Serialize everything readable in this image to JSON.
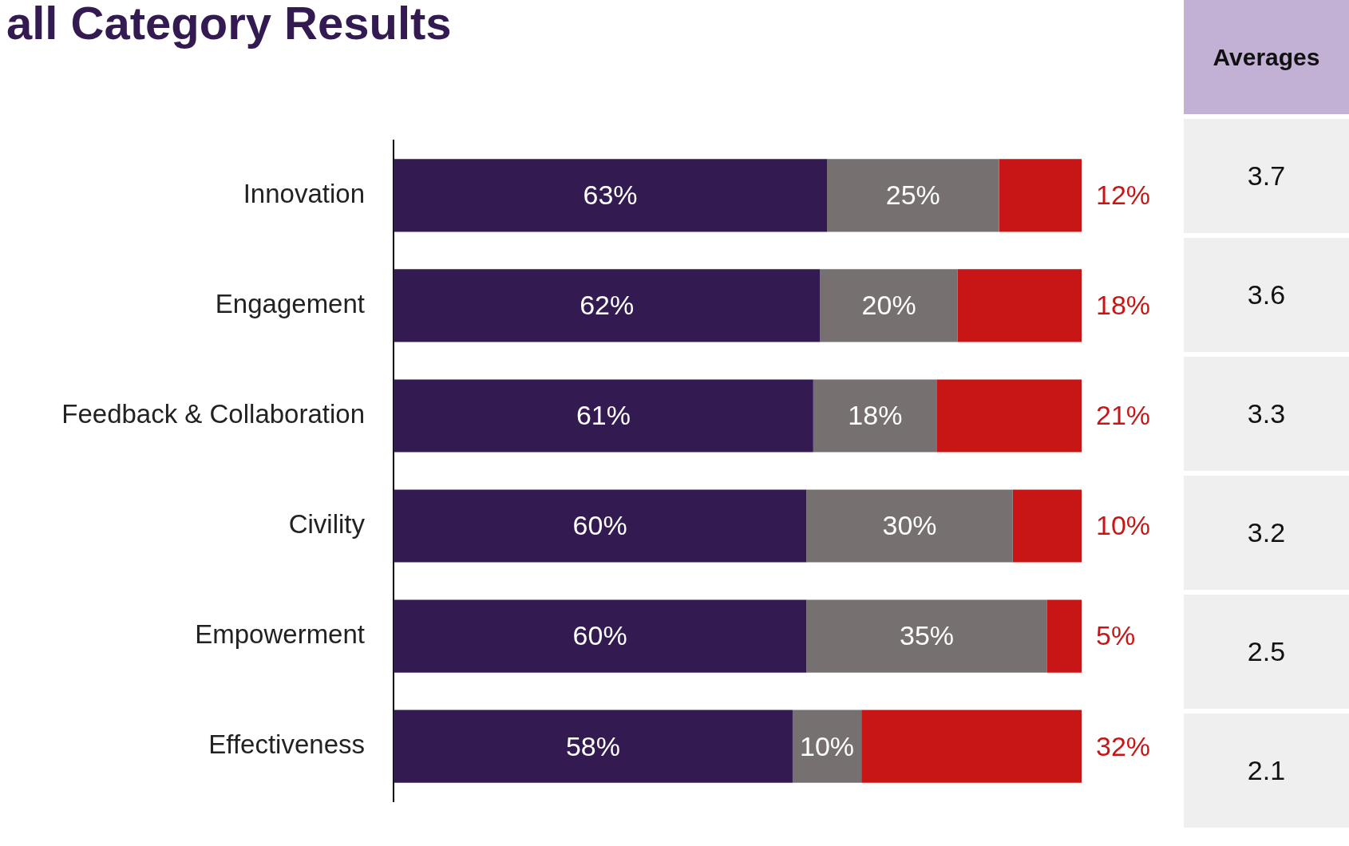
{
  "chart_data": [
    {
      "type": "bar",
      "title": "all Category Results",
      "orientation": "horizontal",
      "stacked": true,
      "categories": [
        "Innovation",
        "Engagement",
        "Feedback & Collaboration",
        "Civility",
        "Empowerment",
        "Effectiveness"
      ],
      "xlim": [
        0,
        100
      ],
      "tick_labels": "y",
      "series": [
        {
          "color": "#331b52",
          "values": [
            63,
            62,
            61,
            60,
            60,
            58
          ],
          "value_labels": [
            "63%",
            "62%",
            "61%",
            "60%",
            "60%",
            "58%"
          ]
        },
        {
          "color": "#767170",
          "values": [
            25,
            20,
            18,
            30,
            35,
            10
          ],
          "value_labels": [
            "25%",
            "20%",
            "18%",
            "30%",
            "35%",
            "10%"
          ]
        },
        {
          "color": "#c81616",
          "values": [
            12,
            18,
            21,
            10,
            5,
            32
          ],
          "value_labels": [
            "12%",
            "18%",
            "21%",
            "10%",
            "5%",
            "32%"
          ]
        }
      ]
    },
    {
      "type": "other",
      "title": "Averages",
      "annotations": [
        "3.7",
        "3.6",
        "3.3",
        "3.2",
        "2.5",
        "2.1"
      ]
    }
  ]
}
